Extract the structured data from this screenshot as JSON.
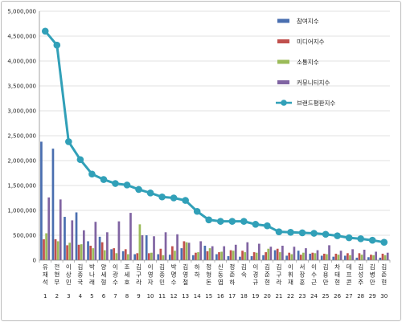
{
  "chart_data": {
    "type": "bar",
    "combo": "bar+line",
    "title": "",
    "xlabel": "",
    "ylabel": "",
    "ylim": [
      0,
      5000000
    ],
    "yticks": [
      0,
      500000,
      1000000,
      1500000,
      2000000,
      2500000,
      3000000,
      3500000,
      4000000,
      4500000,
      5000000
    ],
    "ytick_labels": [
      "0",
      "500,000",
      "1,000,000",
      "1,500,000",
      "2,000,000",
      "2,500,000",
      "3,000,000",
      "3,500,000",
      "4,000,000",
      "4,500,000",
      "5,000,000"
    ],
    "legend_position": "right",
    "grid": "horizontal",
    "categories": [
      "유재석",
      "전현무",
      "이상민",
      "김종국",
      "박나래",
      "양세형",
      "이광수",
      "조세호",
      "김구라",
      "이영자",
      "김종민",
      "박명수",
      "김영철",
      "하하",
      "정형돈",
      "신동엽",
      "정준하",
      "김숙",
      "이경규",
      "김준현",
      "김구라",
      "이휘재",
      "서장훈",
      "이수근",
      "김용만",
      "차태현",
      "데프콘",
      "김성주",
      "김병만",
      "김준현"
    ],
    "numbers": [
      "1",
      "2",
      "3",
      "4",
      "5",
      "6",
      "7",
      "8",
      "9",
      "10",
      "11",
      "12",
      "13",
      "14",
      "15",
      "16",
      "17",
      "18",
      "19",
      "20",
      "21",
      "22",
      "23",
      "24",
      "25",
      "26",
      "27",
      "28",
      "29",
      "30"
    ],
    "series": [
      {
        "name": "참여지수",
        "kind": "bar",
        "color": "#4a6fb0",
        "values": [
          2380000,
          2240000,
          870000,
          960000,
          380000,
          470000,
          220000,
          180000,
          120000,
          500000,
          120000,
          110000,
          240000,
          100000,
          290000,
          120000,
          80000,
          70000,
          80000,
          100000,
          200000,
          90000,
          190000,
          130000,
          90000,
          70000,
          90000,
          50000,
          60000,
          50000
        ]
      },
      {
        "name": "미디어지수",
        "kind": "bar",
        "color": "#c0504d",
        "values": [
          420000,
          420000,
          300000,
          310000,
          290000,
          360000,
          240000,
          220000,
          140000,
          140000,
          230000,
          280000,
          380000,
          150000,
          180000,
          160000,
          200000,
          190000,
          160000,
          160000,
          230000,
          150000,
          110000,
          150000,
          130000,
          130000,
          140000,
          140000,
          110000,
          130000
        ]
      },
      {
        "name": "소통지수",
        "kind": "bar",
        "color": "#9bbb59",
        "values": [
          540000,
          380000,
          350000,
          320000,
          240000,
          200000,
          140000,
          120000,
          720000,
          150000,
          100000,
          190000,
          360000,
          160000,
          240000,
          170000,
          190000,
          160000,
          150000,
          230000,
          160000,
          120000,
          150000,
          140000,
          120000,
          110000,
          100000,
          110000,
          100000,
          100000
        ]
      },
      {
        "name": "커뮤니티지수",
        "kind": "bar",
        "color": "#8064a2",
        "values": [
          1260000,
          1220000,
          800000,
          600000,
          770000,
          560000,
          780000,
          950000,
          500000,
          480000,
          560000,
          520000,
          350000,
          380000,
          280000,
          280000,
          310000,
          360000,
          330000,
          270000,
          290000,
          270000,
          240000,
          200000,
          300000,
          190000,
          220000,
          210000,
          170000,
          150000
        ]
      },
      {
        "name": "브랜드평판지수",
        "kind": "line",
        "color": "#31a0b8",
        "values": [
          4600000,
          4320000,
          2380000,
          2020000,
          1730000,
          1620000,
          1540000,
          1510000,
          1420000,
          1350000,
          1270000,
          1250000,
          1200000,
          980000,
          810000,
          780000,
          780000,
          780000,
          720000,
          690000,
          570000,
          560000,
          550000,
          540000,
          520000,
          490000,
          450000,
          430000,
          400000,
          360000
        ]
      }
    ]
  }
}
